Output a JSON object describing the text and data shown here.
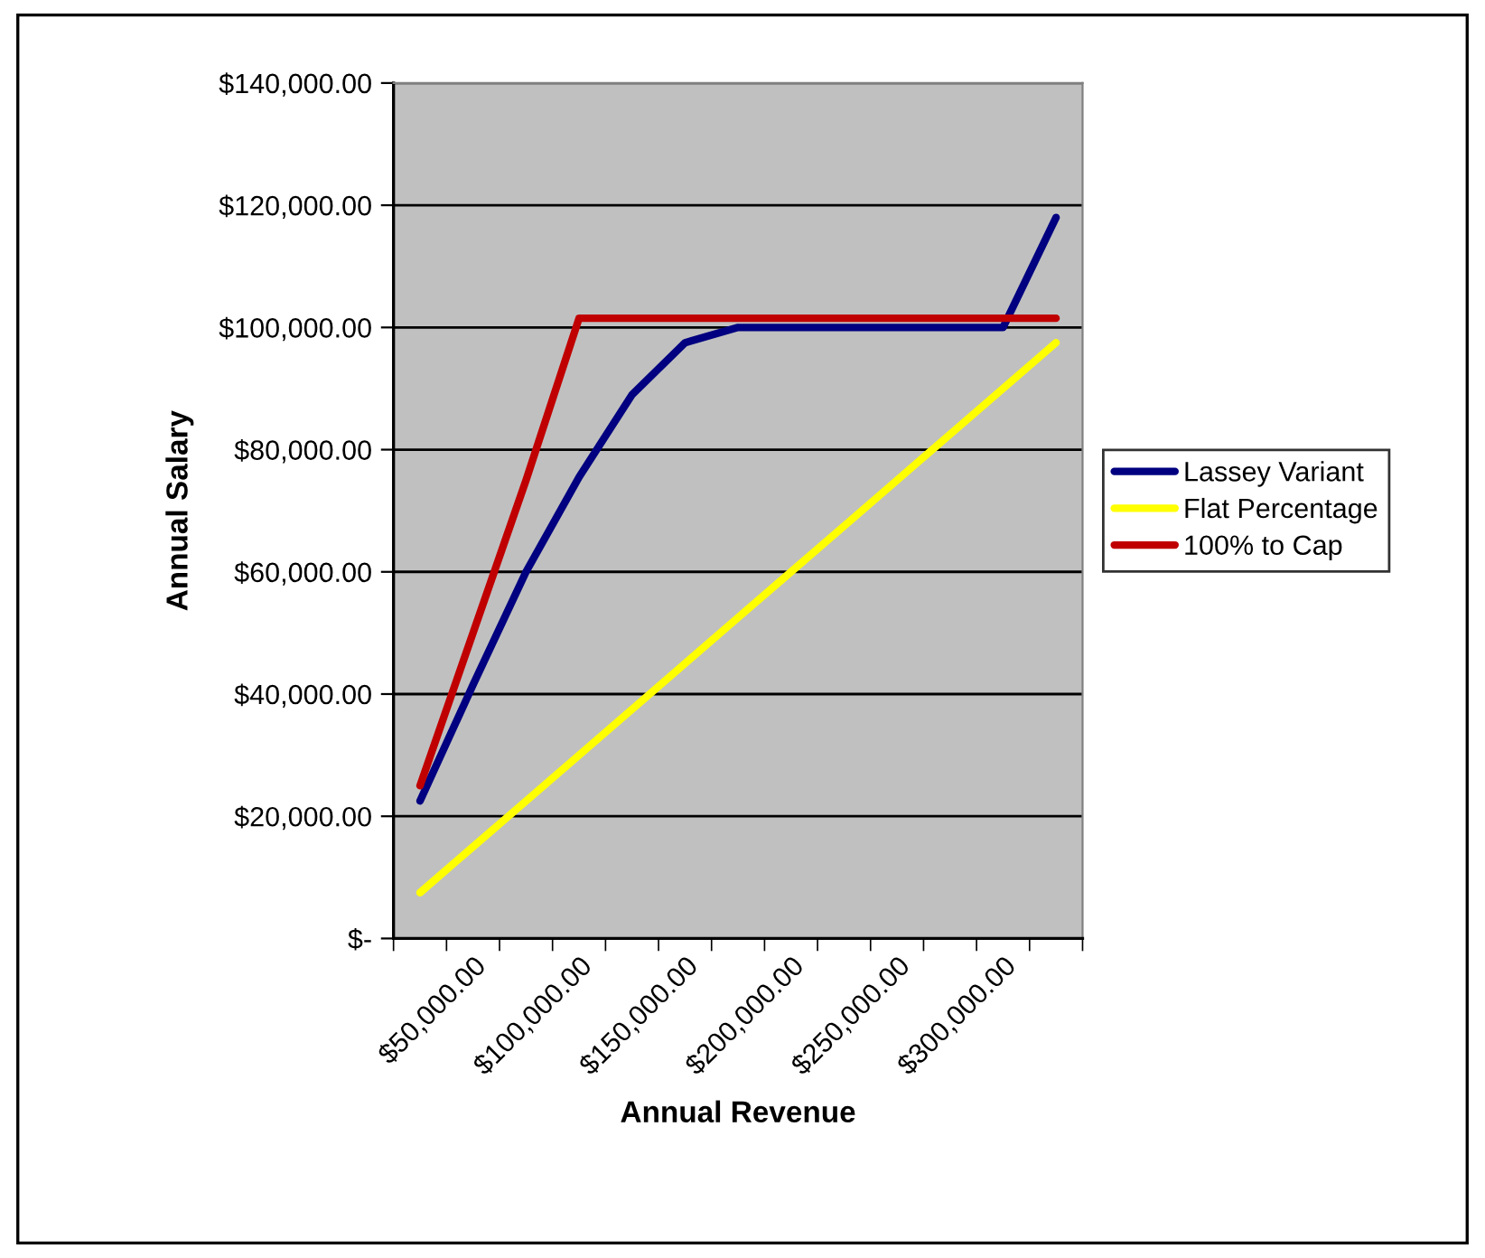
{
  "chart_data": {
    "type": "line",
    "xlabel": "Annual Revenue",
    "ylabel": "Annual Salary",
    "categories": [
      null,
      "$50,000.00",
      null,
      "$100,000.00",
      null,
      "$150,000.00",
      null,
      "$200,000.00",
      null,
      "$250,000.00",
      null,
      "$300,000.00",
      null
    ],
    "series": [
      {
        "name": "Lassey Variant",
        "color": "#000080",
        "values": [
          22500,
          41500,
          60000,
          75500,
          89000,
          97500,
          100000,
          100000,
          100000,
          100000,
          100000,
          100000,
          118000
        ]
      },
      {
        "name": "Flat Percentage",
        "color": "#ffff00",
        "values": [
          7500,
          15000,
          22500,
          30000,
          37500,
          45000,
          52500,
          60000,
          67500,
          75000,
          82500,
          90000,
          97500
        ]
      },
      {
        "name": "100% to Cap",
        "color": "#c00000",
        "values": [
          25000,
          50000,
          75000,
          101500,
          101500,
          101500,
          101500,
          101500,
          101500,
          101500,
          101500,
          101500,
          101500
        ]
      }
    ],
    "ylim": [
      0,
      140000
    ],
    "yticks": [
      {
        "value": 0,
        "label": "$-"
      },
      {
        "value": 20000,
        "label": "$20,000.00"
      },
      {
        "value": 40000,
        "label": "$40,000.00"
      },
      {
        "value": 60000,
        "label": "$60,000.00"
      },
      {
        "value": 80000,
        "label": "$80,000.00"
      },
      {
        "value": 100000,
        "label": "$100,000.00"
      },
      {
        "value": 120000,
        "label": "$120,000.00"
      },
      {
        "value": 140000,
        "label": "$140,000.00"
      }
    ],
    "grid": "y",
    "legend": "right",
    "marker": "none",
    "line_style": "solid"
  }
}
